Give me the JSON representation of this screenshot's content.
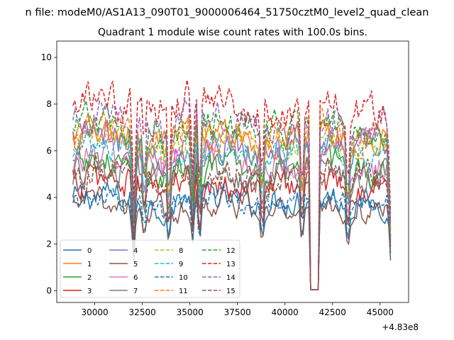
{
  "suptitle": "n file: modeM0/AS1A13_090T01_9000006464_51750cztM0_level2_quad_clean",
  "chart_data": {
    "type": "line",
    "title": "Quadrant 1 module wise count rates with 100.0s bins.",
    "xlabel": "",
    "ylabel": "",
    "x_offset_label": "+4.83e8",
    "xlim": [
      28000,
      46500
    ],
    "ylim": [
      -0.5,
      10.7
    ],
    "xticks": [
      30000,
      32500,
      35000,
      37500,
      40000,
      42500,
      45000
    ],
    "xtick_labels": [
      "30000",
      "32500",
      "35000",
      "37500",
      "40000",
      "42500",
      "45000"
    ],
    "yticks": [
      0,
      2,
      4,
      6,
      8,
      10
    ],
    "ytick_labels": [
      "0",
      "2",
      "4",
      "6",
      "8",
      "10"
    ],
    "grid": false,
    "legend_position": "lower-left",
    "legend_ncol": 4,
    "x_start": 28850,
    "x_end": 45600,
    "x_step": 100,
    "dips": [
      {
        "x": 32050,
        "depth": 0.55
      },
      {
        "x": 32600,
        "depth": 0.3
      },
      {
        "x": 33900,
        "depth": 0.45
      },
      {
        "x": 35150,
        "depth": 0.45
      },
      {
        "x": 35500,
        "depth": 0.5
      },
      {
        "x": 38800,
        "depth": 0.4
      },
      {
        "x": 40900,
        "depth": 0.45
      },
      {
        "x": 43300,
        "depth": 0.5
      },
      {
        "x": 45550,
        "depth": 0.6
      }
    ],
    "gap": {
      "from": 41350,
      "to": 41750,
      "value": 0.05
    },
    "series": [
      {
        "name": "0",
        "base": 3.9,
        "amp": 0.7,
        "color": "#1f77b4",
        "dash": false
      },
      {
        "name": "1",
        "base": 6.6,
        "amp": 0.7,
        "color": "#ff7f0e",
        "dash": false
      },
      {
        "name": "2",
        "base": 5.3,
        "amp": 0.8,
        "color": "#2ca02c",
        "dash": false
      },
      {
        "name": "3",
        "base": 4.6,
        "amp": 0.8,
        "color": "#d62728",
        "dash": false
      },
      {
        "name": "4",
        "base": 6.3,
        "amp": 0.9,
        "color": "#9467bd",
        "dash": false
      },
      {
        "name": "5",
        "base": 3.6,
        "amp": 0.7,
        "color": "#8c564b",
        "dash": false
      },
      {
        "name": "6",
        "base": 5.6,
        "amp": 0.8,
        "color": "#e377c2",
        "dash": false
      },
      {
        "name": "7",
        "base": 5.0,
        "amp": 0.8,
        "color": "#7f7f7f",
        "dash": false
      },
      {
        "name": "8",
        "base": 6.4,
        "amp": 0.7,
        "color": "#bcbd22",
        "dash": true
      },
      {
        "name": "9",
        "base": 6.0,
        "amp": 0.7,
        "color": "#17becf",
        "dash": true
      },
      {
        "name": "10",
        "base": 3.9,
        "amp": 0.5,
        "color": "#1f77b4",
        "dash": true
      },
      {
        "name": "11",
        "base": 6.7,
        "amp": 0.8,
        "color": "#ff7f0e",
        "dash": true
      },
      {
        "name": "12",
        "base": 7.0,
        "amp": 0.8,
        "color": "#2ca02c",
        "dash": true
      },
      {
        "name": "13",
        "base": 7.9,
        "amp": 0.9,
        "color": "#d62728",
        "dash": true
      },
      {
        "name": "14",
        "base": 7.2,
        "amp": 0.8,
        "color": "#9467bd",
        "dash": true
      },
      {
        "name": "15",
        "base": 5.0,
        "amp": 0.8,
        "color": "#8c564b",
        "dash": true
      }
    ]
  }
}
